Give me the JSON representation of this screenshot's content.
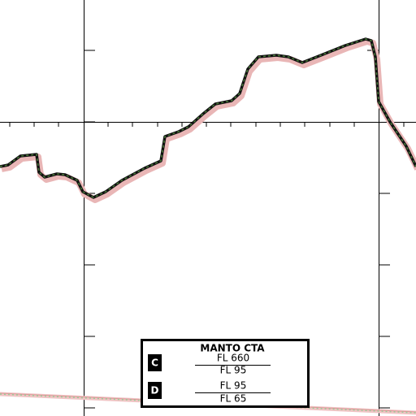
{
  "label": {
    "name": "MANTO CTA",
    "classes": [
      {
        "class": "C",
        "upper": "FL 660",
        "lower": "FL 95"
      },
      {
        "class": "D",
        "upper": "FL 95",
        "lower": "FL 65"
      }
    ]
  }
}
